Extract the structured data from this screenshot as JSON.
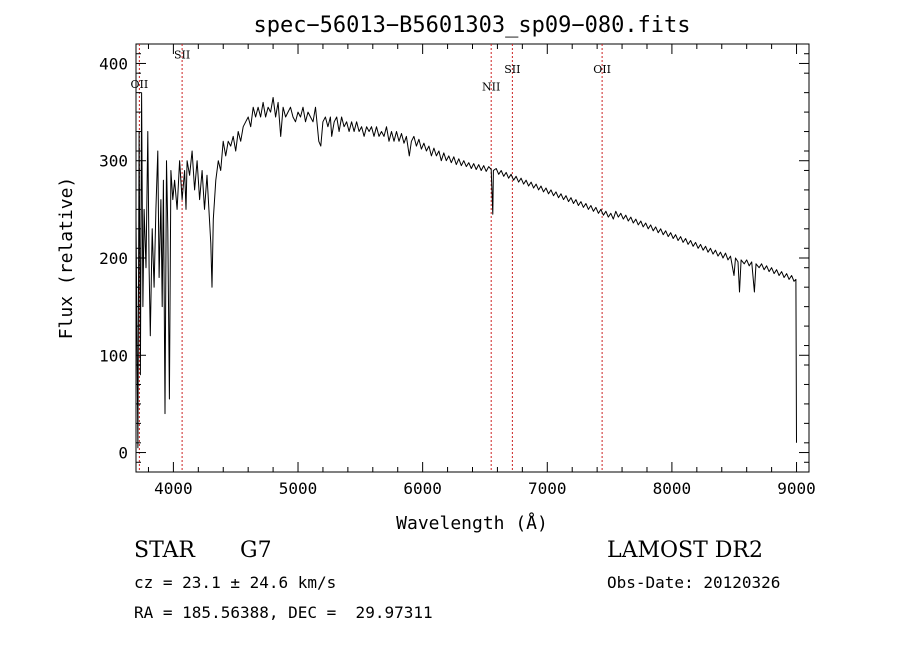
{
  "chart_data": {
    "type": "line",
    "title": "spec−56013−B5601303_sp09−080.fits",
    "xlabel": "Wavelength (Å)",
    "ylabel": "Flux (relative)",
    "xlim": [
      3700,
      9100
    ],
    "ylim": [
      -20,
      420
    ],
    "xticks": [
      4000,
      5000,
      6000,
      7000,
      8000,
      9000
    ],
    "yticks": [
      0,
      100,
      200,
      300,
      400
    ],
    "grid": false,
    "series": [
      {
        "color": "#000000",
        "points": [
          [
            3700,
            240
          ],
          [
            3715,
            5
          ],
          [
            3725,
            330
          ],
          [
            3735,
            80
          ],
          [
            3745,
            370
          ],
          [
            3755,
            150
          ],
          [
            3765,
            250
          ],
          [
            3780,
            190
          ],
          [
            3795,
            330
          ],
          [
            3805,
            190
          ],
          [
            3815,
            120
          ],
          [
            3830,
            230
          ],
          [
            3845,
            170
          ],
          [
            3860,
            250
          ],
          [
            3875,
            310
          ],
          [
            3885,
            180
          ],
          [
            3900,
            260
          ],
          [
            3910,
            150
          ],
          [
            3920,
            280
          ],
          [
            3933,
            40
          ],
          [
            3945,
            300
          ],
          [
            3955,
            230
          ],
          [
            3968,
            55
          ],
          [
            3980,
            290
          ],
          [
            3995,
            260
          ],
          [
            4010,
            280
          ],
          [
            4030,
            250
          ],
          [
            4050,
            300
          ],
          [
            4070,
            260
          ],
          [
            4090,
            290
          ],
          [
            4101,
            250
          ],
          [
            4110,
            300
          ],
          [
            4130,
            285
          ],
          [
            4150,
            310
          ],
          [
            4170,
            270
          ],
          [
            4190,
            300
          ],
          [
            4210,
            260
          ],
          [
            4230,
            290
          ],
          [
            4250,
            250
          ],
          [
            4270,
            285
          ],
          [
            4285,
            250
          ],
          [
            4300,
            215
          ],
          [
            4310,
            170
          ],
          [
            4320,
            240
          ],
          [
            4340,
            280
          ],
          [
            4360,
            300
          ],
          [
            4380,
            290
          ],
          [
            4400,
            320
          ],
          [
            4420,
            305
          ],
          [
            4440,
            320
          ],
          [
            4460,
            315
          ],
          [
            4480,
            325
          ],
          [
            4500,
            310
          ],
          [
            4520,
            330
          ],
          [
            4540,
            320
          ],
          [
            4560,
            335
          ],
          [
            4580,
            340
          ],
          [
            4600,
            345
          ],
          [
            4620,
            335
          ],
          [
            4640,
            355
          ],
          [
            4660,
            345
          ],
          [
            4680,
            355
          ],
          [
            4700,
            345
          ],
          [
            4720,
            360
          ],
          [
            4740,
            345
          ],
          [
            4760,
            355
          ],
          [
            4780,
            350
          ],
          [
            4800,
            365
          ],
          [
            4820,
            345
          ],
          [
            4840,
            360
          ],
          [
            4861,
            325
          ],
          [
            4880,
            355
          ],
          [
            4900,
            345
          ],
          [
            4920,
            350
          ],
          [
            4940,
            355
          ],
          [
            4960,
            345
          ],
          [
            4980,
            340
          ],
          [
            5000,
            350
          ],
          [
            5020,
            345
          ],
          [
            5040,
            355
          ],
          [
            5060,
            340
          ],
          [
            5080,
            350
          ],
          [
            5100,
            345
          ],
          [
            5120,
            340
          ],
          [
            5140,
            355
          ],
          [
            5167,
            320
          ],
          [
            5183,
            315
          ],
          [
            5200,
            340
          ],
          [
            5220,
            345
          ],
          [
            5240,
            335
          ],
          [
            5260,
            345
          ],
          [
            5270,
            325
          ],
          [
            5290,
            340
          ],
          [
            5310,
            345
          ],
          [
            5330,
            330
          ],
          [
            5350,
            345
          ],
          [
            5370,
            335
          ],
          [
            5390,
            340
          ],
          [
            5410,
            330
          ],
          [
            5430,
            340
          ],
          [
            5450,
            330
          ],
          [
            5470,
            340
          ],
          [
            5490,
            330
          ],
          [
            5510,
            335
          ],
          [
            5530,
            325
          ],
          [
            5550,
            335
          ],
          [
            5570,
            330
          ],
          [
            5590,
            335
          ],
          [
            5610,
            325
          ],
          [
            5630,
            335
          ],
          [
            5650,
            325
          ],
          [
            5670,
            330
          ],
          [
            5690,
            325
          ],
          [
            5710,
            335
          ],
          [
            5730,
            320
          ],
          [
            5750,
            330
          ],
          [
            5770,
            320
          ],
          [
            5790,
            330
          ],
          [
            5810,
            320
          ],
          [
            5830,
            328
          ],
          [
            5850,
            318
          ],
          [
            5870,
            325
          ],
          [
            5893,
            305
          ],
          [
            5910,
            320
          ],
          [
            5930,
            325
          ],
          [
            5950,
            315
          ],
          [
            5970,
            322
          ],
          [
            5990,
            312
          ],
          [
            6010,
            318
          ],
          [
            6030,
            310
          ],
          [
            6050,
            315
          ],
          [
            6070,
            305
          ],
          [
            6090,
            313
          ],
          [
            6110,
            305
          ],
          [
            6130,
            310
          ],
          [
            6150,
            300
          ],
          [
            6170,
            308
          ],
          [
            6190,
            300
          ],
          [
            6210,
            305
          ],
          [
            6230,
            298
          ],
          [
            6250,
            304
          ],
          [
            6270,
            296
          ],
          [
            6290,
            302
          ],
          [
            6310,
            295
          ],
          [
            6330,
            300
          ],
          [
            6350,
            294
          ],
          [
            6370,
            298
          ],
          [
            6390,
            292
          ],
          [
            6410,
            297
          ],
          [
            6430,
            291
          ],
          [
            6450,
            296
          ],
          [
            6470,
            290
          ],
          [
            6490,
            295
          ],
          [
            6510,
            289
          ],
          [
            6530,
            294
          ],
          [
            6550,
            291
          ],
          [
            6563,
            245
          ],
          [
            6568,
            290
          ],
          [
            6590,
            292
          ],
          [
            6610,
            286
          ],
          [
            6630,
            290
          ],
          [
            6650,
            284
          ],
          [
            6670,
            288
          ],
          [
            6690,
            282
          ],
          [
            6710,
            286
          ],
          [
            6730,
            280
          ],
          [
            6750,
            284
          ],
          [
            6770,
            278
          ],
          [
            6790,
            282
          ],
          [
            6810,
            276
          ],
          [
            6830,
            280
          ],
          [
            6850,
            274
          ],
          [
            6870,
            278
          ],
          [
            6890,
            272
          ],
          [
            6910,
            276
          ],
          [
            6930,
            270
          ],
          [
            6950,
            274
          ],
          [
            6970,
            268
          ],
          [
            6990,
            272
          ],
          [
            7010,
            266
          ],
          [
            7030,
            270
          ],
          [
            7050,
            264
          ],
          [
            7070,
            268
          ],
          [
            7090,
            262
          ],
          [
            7110,
            266
          ],
          [
            7130,
            260
          ],
          [
            7150,
            264
          ],
          [
            7170,
            258
          ],
          [
            7190,
            262
          ],
          [
            7210,
            256
          ],
          [
            7230,
            260
          ],
          [
            7250,
            254
          ],
          [
            7270,
            258
          ],
          [
            7290,
            252
          ],
          [
            7310,
            256
          ],
          [
            7330,
            250
          ],
          [
            7350,
            254
          ],
          [
            7370,
            248
          ],
          [
            7390,
            252
          ],
          [
            7410,
            246
          ],
          [
            7430,
            250
          ],
          [
            7450,
            244
          ],
          [
            7470,
            248
          ],
          [
            7490,
            242
          ],
          [
            7510,
            246
          ],
          [
            7530,
            240
          ],
          [
            7550,
            248
          ],
          [
            7570,
            242
          ],
          [
            7590,
            246
          ],
          [
            7610,
            240
          ],
          [
            7630,
            244
          ],
          [
            7650,
            238
          ],
          [
            7670,
            242
          ],
          [
            7690,
            236
          ],
          [
            7710,
            240
          ],
          [
            7730,
            234
          ],
          [
            7750,
            238
          ],
          [
            7770,
            232
          ],
          [
            7790,
            236
          ],
          [
            7810,
            230
          ],
          [
            7830,
            234
          ],
          [
            7850,
            228
          ],
          [
            7870,
            232
          ],
          [
            7890,
            226
          ],
          [
            7910,
            230
          ],
          [
            7930,
            224
          ],
          [
            7950,
            228
          ],
          [
            7970,
            222
          ],
          [
            7990,
            226
          ],
          [
            8010,
            220
          ],
          [
            8030,
            224
          ],
          [
            8050,
            218
          ],
          [
            8070,
            222
          ],
          [
            8090,
            216
          ],
          [
            8110,
            220
          ],
          [
            8130,
            214
          ],
          [
            8150,
            218
          ],
          [
            8170,
            212
          ],
          [
            8190,
            216
          ],
          [
            8210,
            210
          ],
          [
            8230,
            214
          ],
          [
            8250,
            208
          ],
          [
            8270,
            212
          ],
          [
            8290,
            206
          ],
          [
            8310,
            210
          ],
          [
            8330,
            204
          ],
          [
            8350,
            208
          ],
          [
            8370,
            202
          ],
          [
            8390,
            206
          ],
          [
            8410,
            200
          ],
          [
            8430,
            205
          ],
          [
            8450,
            198
          ],
          [
            8470,
            202
          ],
          [
            8498,
            182
          ],
          [
            8510,
            200
          ],
          [
            8530,
            196
          ],
          [
            8542,
            165
          ],
          [
            8555,
            198
          ],
          [
            8580,
            194
          ],
          [
            8600,
            198
          ],
          [
            8620,
            192
          ],
          [
            8640,
            196
          ],
          [
            8662,
            165
          ],
          [
            8675,
            194
          ],
          [
            8700,
            190
          ],
          [
            8720,
            194
          ],
          [
            8740,
            188
          ],
          [
            8760,
            192
          ],
          [
            8780,
            186
          ],
          [
            8800,
            190
          ],
          [
            8820,
            184
          ],
          [
            8840,
            188
          ],
          [
            8860,
            182
          ],
          [
            8880,
            186
          ],
          [
            8900,
            180
          ],
          [
            8920,
            184
          ],
          [
            8940,
            178
          ],
          [
            8960,
            182
          ],
          [
            8980,
            176
          ],
          [
            8995,
            178
          ],
          [
            9000,
            10
          ]
        ]
      }
    ],
    "lines": [
      {
        "label": "OII",
        "x": 3727,
        "label_y": 375
      },
      {
        "label": "SII",
        "x": 4070,
        "label_y": 405
      },
      {
        "label": "NII",
        "x": 6550,
        "label_y": 372
      },
      {
        "label": "SII",
        "x": 6720,
        "label_y": 390
      },
      {
        "label": "OII",
        "x": 7440,
        "label_y": 390
      }
    ],
    "line_color": "#cc2222"
  },
  "info": {
    "object_type": "STAR",
    "subclass": "G7",
    "survey": "LAMOST DR2",
    "velocity": "cz = 23.1 ± 24.6 km/s",
    "obs_date": "Obs-Date: 20120326",
    "coordinates": "RA = 185.56388, DEC =  29.97311"
  }
}
